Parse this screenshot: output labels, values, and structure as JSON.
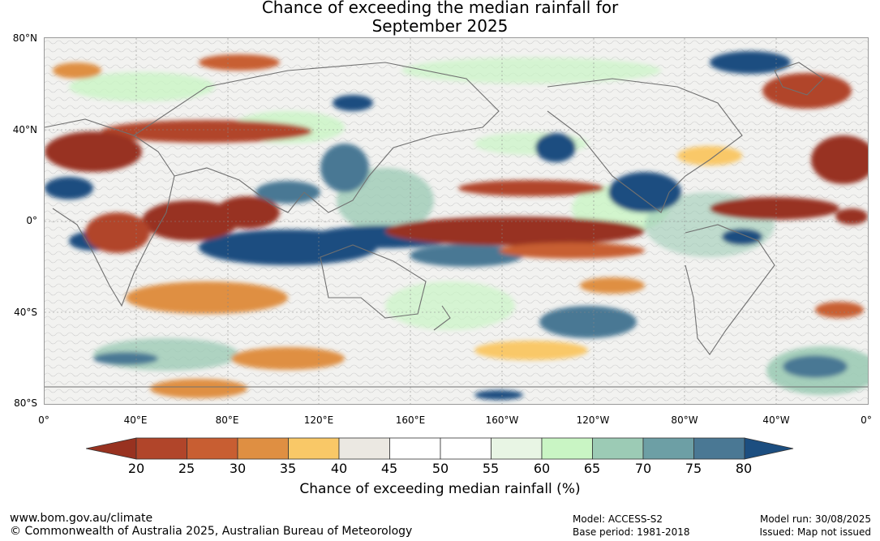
{
  "title": {
    "line1": "Chance of exceeding the median rainfall for",
    "line2": "September 2025"
  },
  "lat_labels": [
    "80°N",
    "40°N",
    "0°",
    "40°S",
    "80°S"
  ],
  "lon_labels": [
    "0°",
    "40°E",
    "80°E",
    "120°E",
    "160°E",
    "160°W",
    "120°W",
    "80°W",
    "40°W",
    "0°"
  ],
  "colorbar": {
    "ticks": [
      "20",
      "25",
      "30",
      "35",
      "40",
      "45",
      "50",
      "55",
      "60",
      "65",
      "70",
      "75",
      "80"
    ],
    "colors": [
      "#b1452a",
      "#c85e32",
      "#df8f42",
      "#f9c867",
      "#ebe8e2",
      "#ffffff",
      "#ffffff",
      "#e8f5e4",
      "#c9f5c4",
      "#9ccbb5",
      "#6d9fa5",
      "#4a7894"
    ],
    "below_color": "#983220",
    "above_color": "#1c4e80",
    "label": "Chance of exceeding median rainfall (%)"
  },
  "footer": {
    "website": "www.bom.gov.au/climate",
    "copyright": "© Commonwealth of Australia 2025, Australian Bureau of Meteorology",
    "model": "Model: ACCESS-S2",
    "base_period": "Base period: 1981-2018",
    "model_run": "Model run: 30/08/2025",
    "issued": "Issued: Map not issued"
  }
}
